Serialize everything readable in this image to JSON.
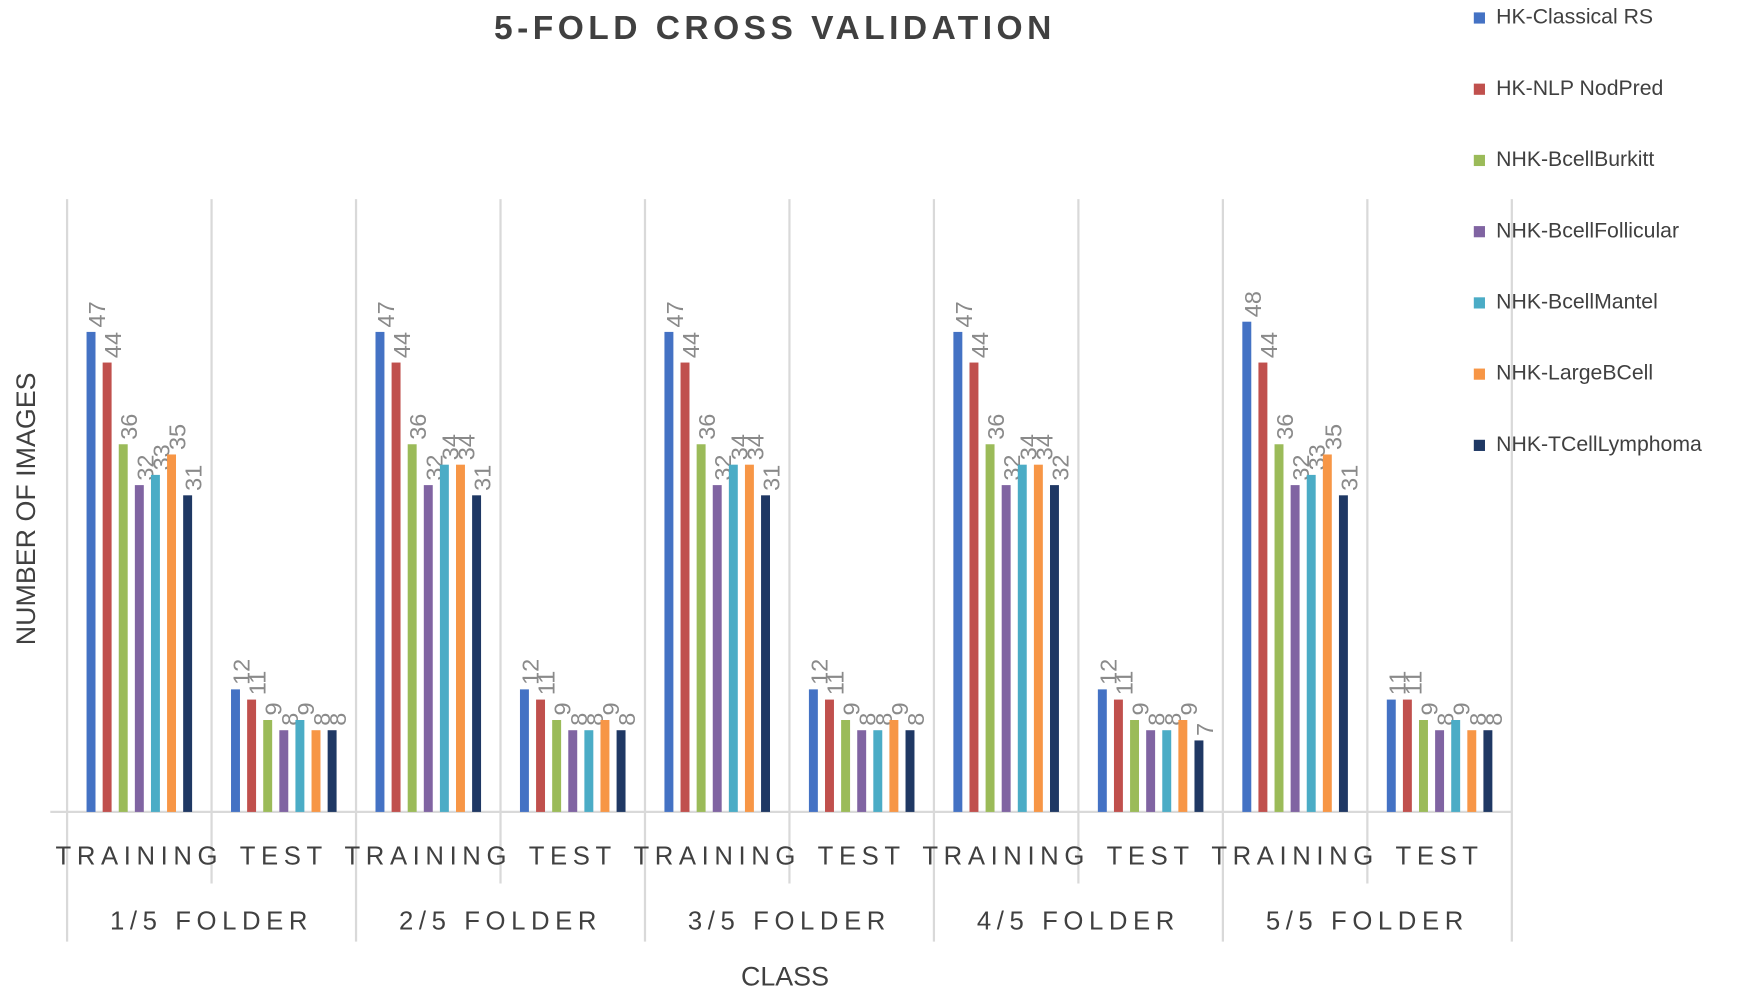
{
  "chart_data": {
    "type": "bar",
    "title": "5-FOLD CROSS VALIDATION",
    "x_label": "CLASS",
    "y_label": "NUMBER OF IMAGES",
    "categories": [
      "TRAINING",
      "TEST",
      "TRAINING",
      "TEST",
      "TRAINING",
      "TEST",
      "TRAINING",
      "TEST",
      "TRAINING",
      "TEST"
    ],
    "groups": [
      "1/5 FOLDER",
      "2/5 FOLDER",
      "3/5 FOLDER",
      "4/5 FOLDER",
      "5/5 FOLDER"
    ],
    "ylim": [
      0,
      60
    ],
    "legend": "right",
    "series": [
      {
        "name": "HK-Classical RS",
        "color": "#4472c4",
        "values": [
          47,
          12,
          47,
          12,
          47,
          12,
          47,
          12,
          48,
          11
        ]
      },
      {
        "name": "HK-NLP NodPred",
        "color": "#c0504d",
        "values": [
          44,
          11,
          44,
          11,
          44,
          11,
          44,
          11,
          44,
          11
        ]
      },
      {
        "name": "NHK-BcellBurkitt",
        "color": "#9bbb59",
        "values": [
          36,
          9,
          36,
          9,
          36,
          9,
          36,
          9,
          36,
          9
        ]
      },
      {
        "name": "NHK-BcellFollicular",
        "color": "#8064a2",
        "values": [
          32,
          8,
          32,
          8,
          32,
          8,
          32,
          8,
          32,
          8
        ]
      },
      {
        "name": "NHK-BcellMantel",
        "color": "#4bacc6",
        "values": [
          33,
          9,
          34,
          8,
          34,
          8,
          34,
          8,
          33,
          9
        ]
      },
      {
        "name": "NHK-LargeBCell",
        "color": "#f79646",
        "values": [
          35,
          8,
          34,
          9,
          34,
          9,
          34,
          9,
          35,
          8
        ]
      },
      {
        "name": "NHK-TCellLymphoma",
        "color": "#1f3864",
        "values": [
          31,
          8,
          31,
          8,
          31,
          8,
          32,
          7,
          31,
          8
        ]
      }
    ]
  }
}
